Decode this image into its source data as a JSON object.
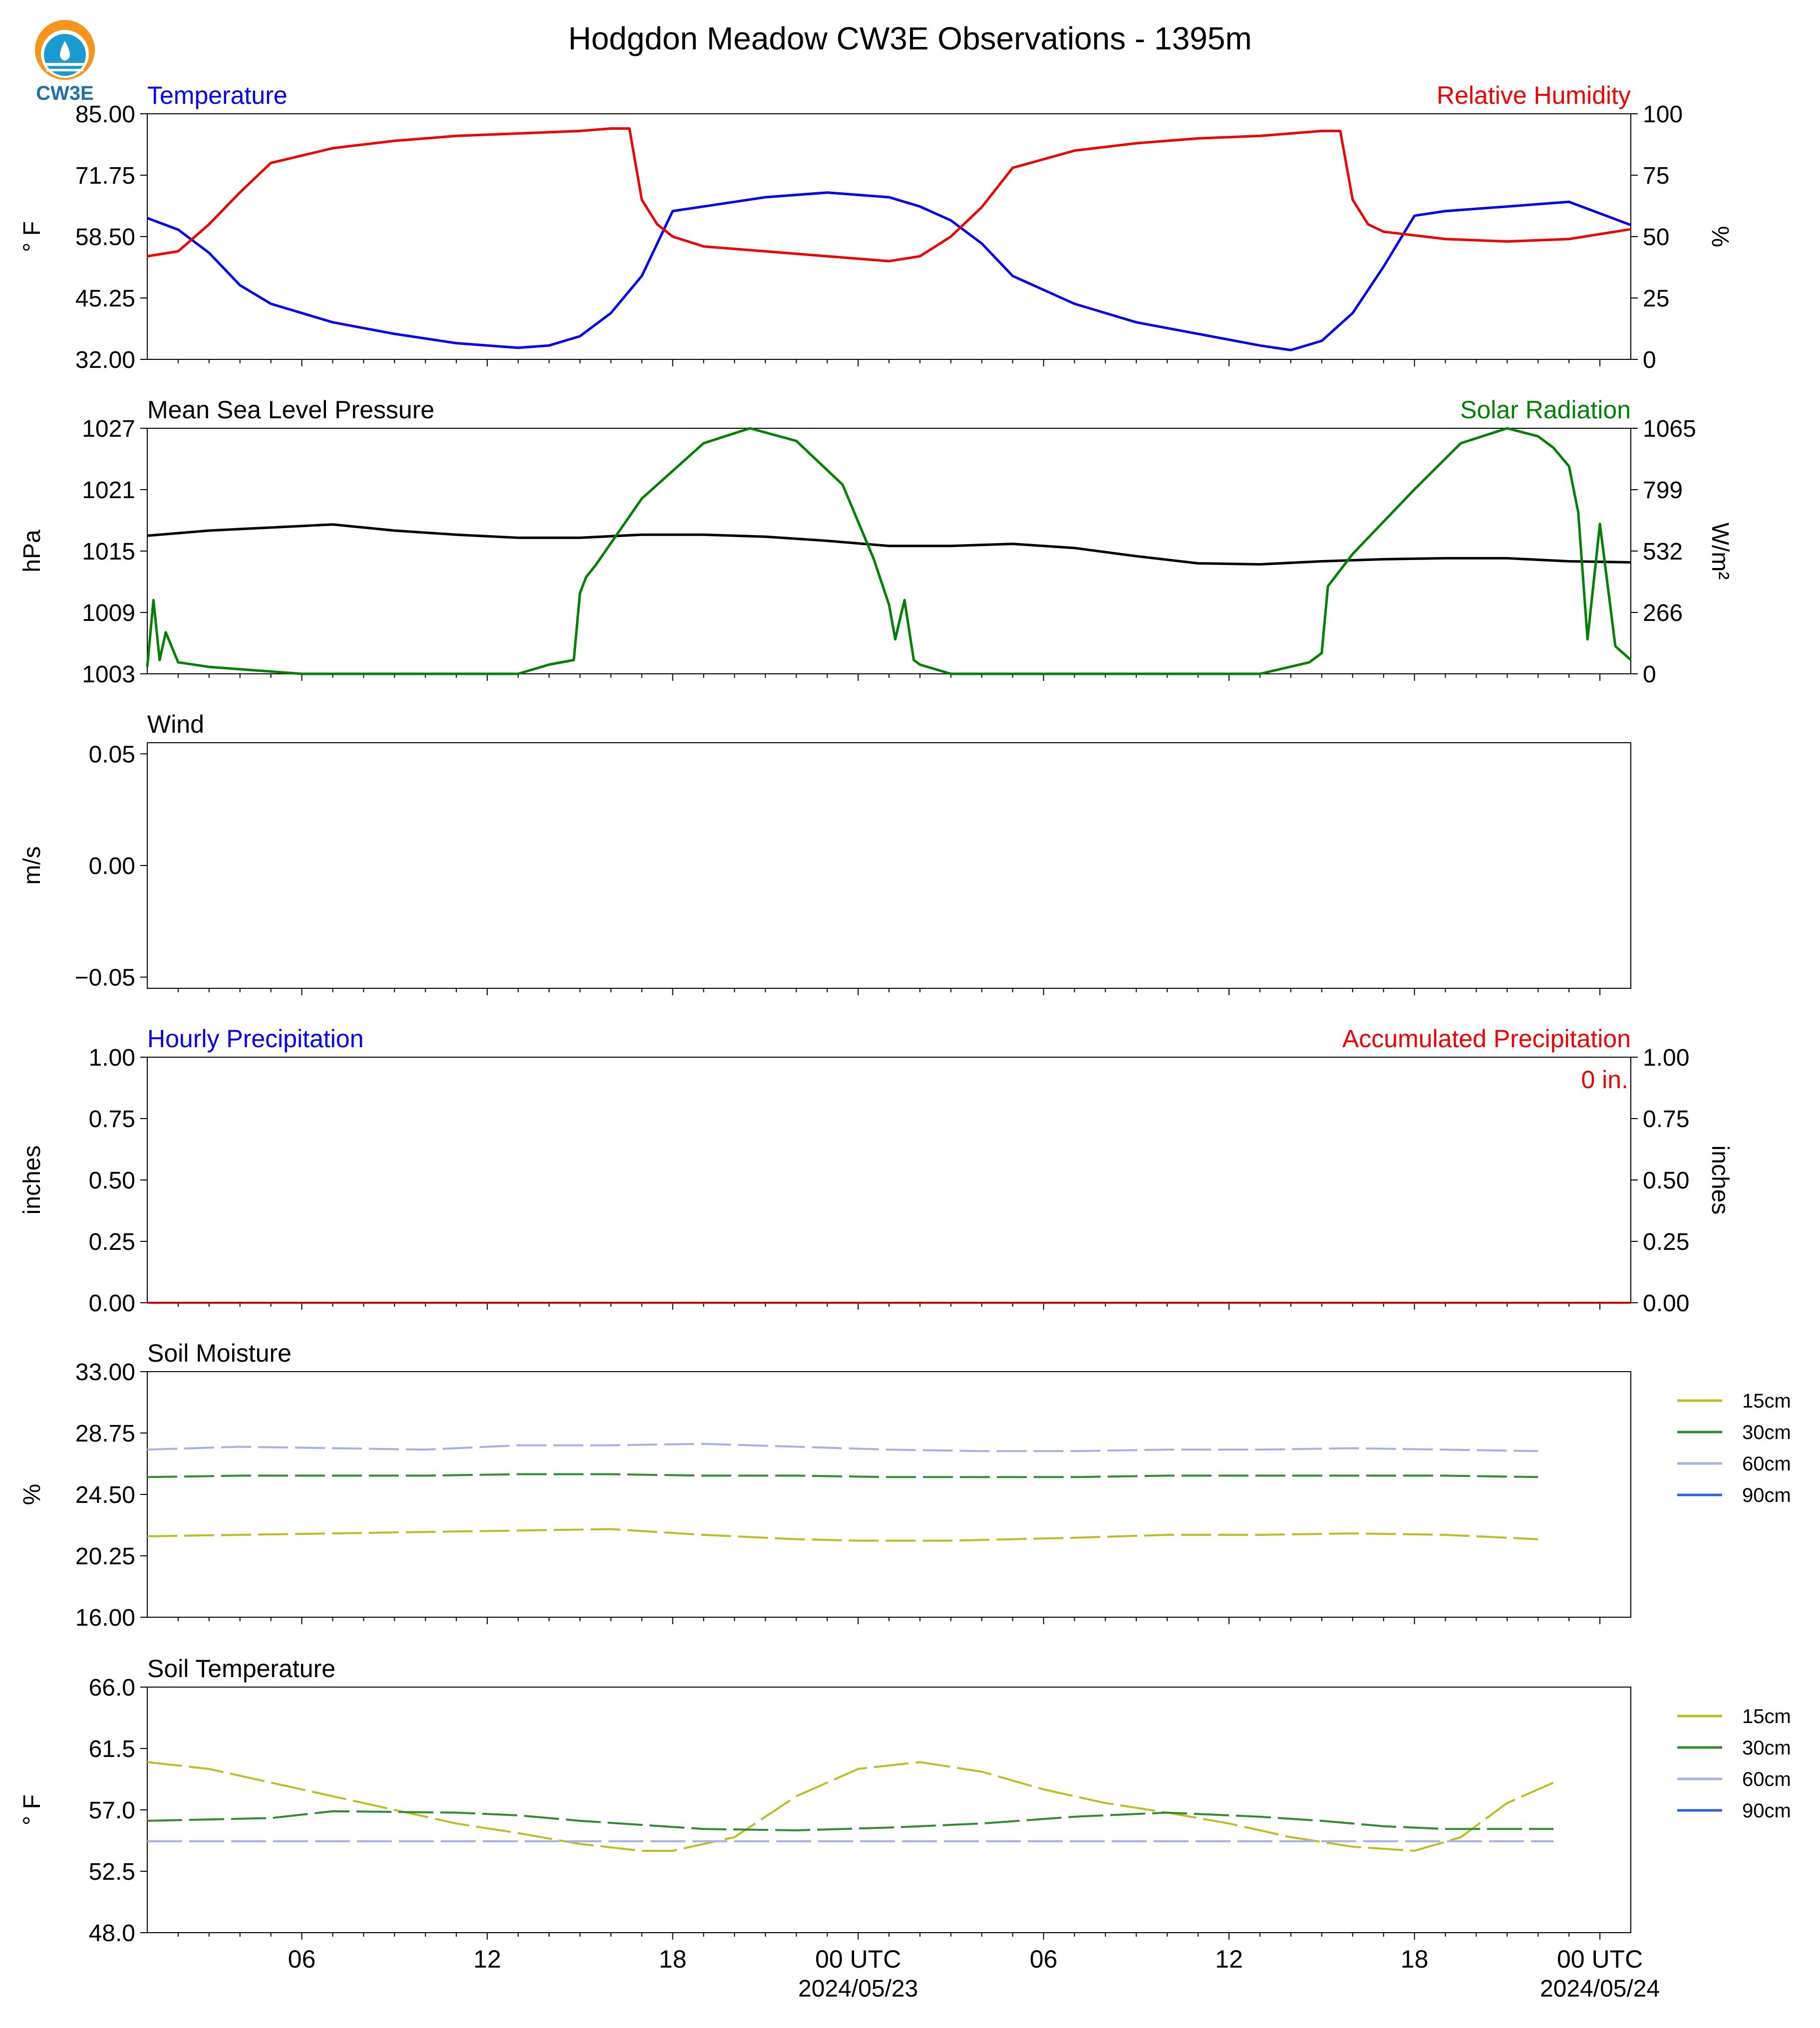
{
  "title": "Hodgdon Meadow CW3E Observations - 1395m",
  "logo": {
    "text": "CW3E",
    "icon": "cw3e-water-drop-logo",
    "colors": [
      "#f7941d",
      "#1b9bd1",
      "#1f6fa8"
    ]
  },
  "x_axis": {
    "tick_labels": [
      "06",
      "12",
      "18",
      "00 UTC",
      "06",
      "12",
      "18",
      "00 UTC"
    ],
    "date_labels": [
      "2024/05/23",
      "2024/05/24"
    ],
    "start": "2024-05-22T01:00Z",
    "end": "2024-05-24T01:00Z"
  },
  "panels": {
    "temperature": {
      "left_title": "Temperature",
      "right_title": "Relative Humidity",
      "left_unit": "$^\\circ$F",
      "right_unit": "%",
      "left_ticks": [
        "85.00",
        "71.75",
        "58.50",
        "45.25",
        "32.00"
      ],
      "right_ticks": [
        "100",
        "75",
        "50",
        "25",
        "0"
      ]
    },
    "pressure": {
      "left_title": "Mean Sea Level Pressure",
      "right_title": "Solar Radiation",
      "left_unit": "hPa",
      "right_unit": "W/m²",
      "left_ticks": [
        "1027",
        "1021",
        "1015",
        "1009",
        "1003"
      ],
      "right_ticks": [
        "1065",
        "799",
        "532",
        "266",
        "0"
      ]
    },
    "wind": {
      "left_title": "Wind",
      "left_unit": "m/s",
      "left_ticks": [
        "0.05",
        "0.00",
        "−0.05"
      ]
    },
    "precip": {
      "left_title": "Hourly Precipitation",
      "right_title": "Accumulated Precipitation",
      "left_unit": "inches",
      "right_unit": "inches",
      "left_ticks": [
        "1.00",
        "0.75",
        "0.50",
        "0.25",
        "0.00"
      ],
      "right_ticks": [
        "1.00",
        "0.75",
        "0.50",
        "0.25",
        "0.00"
      ],
      "total": "0 in."
    },
    "soil_moisture": {
      "left_title": "Soil Moisture",
      "left_unit": "%",
      "left_ticks": [
        "33.00",
        "28.75",
        "24.50",
        "20.25",
        "16.00"
      ],
      "legend": [
        "15cm",
        "30cm",
        "60cm",
        "90cm"
      ]
    },
    "soil_temp": {
      "left_title": "Soil Temperature",
      "left_unit": "$^\\circ$F",
      "left_ticks": [
        "66.0",
        "61.5",
        "57.0",
        "52.5",
        "48.0"
      ],
      "legend": [
        "15cm",
        "30cm",
        "60cm",
        "90cm"
      ]
    }
  },
  "colors": {
    "temperature": "#0000ee",
    "humidity": "#ee0000",
    "pressure": "#000000",
    "solar": "#008000",
    "accum": "#cc0000",
    "soil_15": "#bdbd1f",
    "soil_30": "#2e8b2e",
    "soil_60": "#a8b0e8",
    "soil_90": "#2a5fe0"
  },
  "chart_data": [
    {
      "type": "line",
      "title": "Temperature / Relative Humidity",
      "x_unit": "hours since 2024-05-22 01 UTC",
      "series": [
        {
          "name": "Temperature",
          "axis": "left",
          "unit": "F",
          "x": [
            0,
            1,
            2,
            3,
            4,
            5,
            6,
            8,
            10,
            12,
            13,
            14,
            15,
            16,
            17,
            18,
            20,
            22,
            24,
            25,
            26,
            27,
            28,
            30,
            32,
            34,
            36,
            37,
            38,
            39,
            40,
            41,
            42,
            44,
            46,
            48
          ],
          "y": [
            62.5,
            60,
            55,
            48,
            44,
            42,
            40,
            37.5,
            35.5,
            34.5,
            35,
            37,
            42,
            50,
            64,
            65,
            67,
            68,
            67,
            65,
            62,
            57,
            50,
            44,
            40,
            37.5,
            35,
            34,
            36,
            42,
            52,
            63,
            64,
            65,
            66,
            61
          ]
        },
        {
          "name": "Relative Humidity",
          "axis": "right",
          "unit": "%",
          "x": [
            0,
            1,
            2,
            3,
            4,
            6,
            8,
            10,
            12,
            14,
            15,
            15.6,
            16,
            16.5,
            17,
            18,
            20,
            22,
            24,
            25,
            26,
            27,
            28,
            30,
            32,
            34,
            36,
            38,
            38.6,
            39,
            39.5,
            40,
            42,
            44,
            46,
            48
          ],
          "y": [
            42,
            44,
            55,
            68,
            80,
            86,
            89,
            91,
            92,
            93,
            94,
            94,
            65,
            55,
            50,
            46,
            44,
            42,
            40,
            42,
            50,
            62,
            78,
            85,
            88,
            90,
            91,
            93,
            93,
            65,
            55,
            52,
            49,
            48,
            49,
            53
          ]
        }
      ],
      "ylim_left": [
        32,
        85
      ],
      "ylim_right": [
        0,
        100
      ],
      "grid": false
    },
    {
      "type": "line",
      "title": "Mean Sea Level Pressure / Solar Radiation",
      "x_unit": "hours since 2024-05-22 01 UTC",
      "series": [
        {
          "name": "Mean Sea Level Pressure",
          "axis": "left",
          "unit": "hPa",
          "x": [
            0,
            2,
            4,
            6,
            8,
            10,
            12,
            14,
            16,
            18,
            20,
            22,
            24,
            26,
            28,
            30,
            32,
            34,
            36,
            38,
            40,
            42,
            44,
            46,
            48
          ],
          "y": [
            1016.5,
            1017,
            1017.3,
            1017.6,
            1017,
            1016.6,
            1016.3,
            1016.3,
            1016.6,
            1016.6,
            1016.4,
            1016,
            1015.5,
            1015.5,
            1015.7,
            1015.3,
            1014.5,
            1013.8,
            1013.7,
            1014,
            1014.2,
            1014.3,
            1014.3,
            1014,
            1013.9
          ]
        },
        {
          "name": "Solar Radiation",
          "axis": "right",
          "unit": "W/m2",
          "x": [
            0,
            0.2,
            0.4,
            0.6,
            1,
            2,
            5,
            10,
            11,
            12,
            13,
            13.8,
            14,
            14.2,
            14.5,
            16,
            18,
            19.5,
            21,
            22.5,
            23.5,
            24,
            24.2,
            24.5,
            24.8,
            25,
            26,
            30,
            36,
            37.6,
            38,
            38.2,
            39,
            41,
            42.5,
            44,
            45,
            45.5,
            46,
            46.3,
            46.6,
            47,
            47.5,
            48
          ],
          "y": [
            30,
            320,
            60,
            180,
            50,
            30,
            0,
            0,
            0,
            0,
            40,
            60,
            350,
            420,
            470,
            760,
            1000,
            1065,
            1010,
            820,
            500,
            300,
            150,
            320,
            60,
            40,
            0,
            0,
            0,
            50,
            90,
            380,
            520,
            800,
            1000,
            1065,
            1030,
            980,
            900,
            700,
            150,
            650,
            120,
            60
          ]
        }
      ],
      "ylim_left": [
        1003,
        1027
      ],
      "ylim_right": [
        0,
        1065
      ],
      "grid": false
    },
    {
      "type": "line",
      "title": "Wind",
      "series": [],
      "ylim": [
        -0.055,
        0.055
      ]
    },
    {
      "type": "line",
      "title": "Hourly / Accumulated Precipitation",
      "series": [
        {
          "name": "Accumulated Precipitation",
          "axis": "right",
          "x": [
            0,
            48
          ],
          "y": [
            0,
            0
          ]
        }
      ],
      "ylim_left": [
        0,
        1
      ],
      "ylim_right": [
        0,
        1
      ]
    },
    {
      "type": "line",
      "title": "Soil Moisture",
      "series": [
        {
          "name": "15cm",
          "x": [
            0,
            3,
            6,
            9,
            12,
            15,
            18,
            21,
            23,
            26,
            30,
            33,
            36,
            39,
            42,
            45
          ],
          "y": [
            21.6,
            21.7,
            21.8,
            21.9,
            22.0,
            22.1,
            21.7,
            21.4,
            21.3,
            21.3,
            21.5,
            21.7,
            21.7,
            21.8,
            21.7,
            21.4
          ]
        },
        {
          "name": "30cm",
          "x": [
            0,
            3,
            6,
            9,
            12,
            15,
            18,
            21,
            24,
            27,
            30,
            33,
            36,
            39,
            42,
            45
          ],
          "y": [
            25.7,
            25.8,
            25.8,
            25.8,
            25.9,
            25.9,
            25.8,
            25.8,
            25.7,
            25.7,
            25.7,
            25.8,
            25.8,
            25.8,
            25.8,
            25.7
          ]
        },
        {
          "name": "60cm",
          "x": [
            0,
            3,
            6,
            9,
            12,
            15,
            18,
            21,
            24,
            27,
            30,
            33,
            36,
            39,
            42,
            45
          ],
          "y": [
            27.6,
            27.8,
            27.7,
            27.6,
            27.9,
            27.9,
            28.0,
            27.8,
            27.6,
            27.5,
            27.5,
            27.6,
            27.6,
            27.7,
            27.6,
            27.5
          ]
        },
        {
          "name": "90cm",
          "x": [],
          "y": []
        }
      ],
      "ylim": [
        16,
        33
      ]
    },
    {
      "type": "line",
      "title": "Soil Temperature",
      "series": [
        {
          "name": "15cm",
          "x": [
            0,
            2,
            4,
            6,
            8,
            10,
            12,
            14,
            16,
            17,
            19,
            21,
            23,
            25,
            27,
            29,
            31,
            33,
            35,
            37,
            39,
            41,
            42.5,
            44,
            45.5
          ],
          "y": [
            60.5,
            60,
            59,
            58,
            57,
            56,
            55.3,
            54.5,
            54,
            54,
            55,
            58,
            60,
            60.5,
            59.8,
            58.5,
            57.5,
            56.8,
            56,
            55,
            54.3,
            54,
            55,
            57.5,
            59
          ]
        },
        {
          "name": "30cm",
          "x": [
            0,
            4,
            6,
            10,
            12,
            14,
            16,
            18,
            21,
            24,
            27,
            30,
            33,
            36,
            38,
            40,
            42,
            45.5
          ],
          "y": [
            56.2,
            56.4,
            56.9,
            56.8,
            56.6,
            56.2,
            55.9,
            55.6,
            55.5,
            55.7,
            56,
            56.5,
            56.8,
            56.5,
            56.2,
            55.8,
            55.6,
            55.6
          ]
        },
        {
          "name": "60cm",
          "x": [
            0,
            45.5
          ],
          "y": [
            54.7,
            54.7
          ]
        },
        {
          "name": "90cm",
          "x": [],
          "y": []
        }
      ],
      "ylim": [
        48,
        66
      ]
    }
  ]
}
